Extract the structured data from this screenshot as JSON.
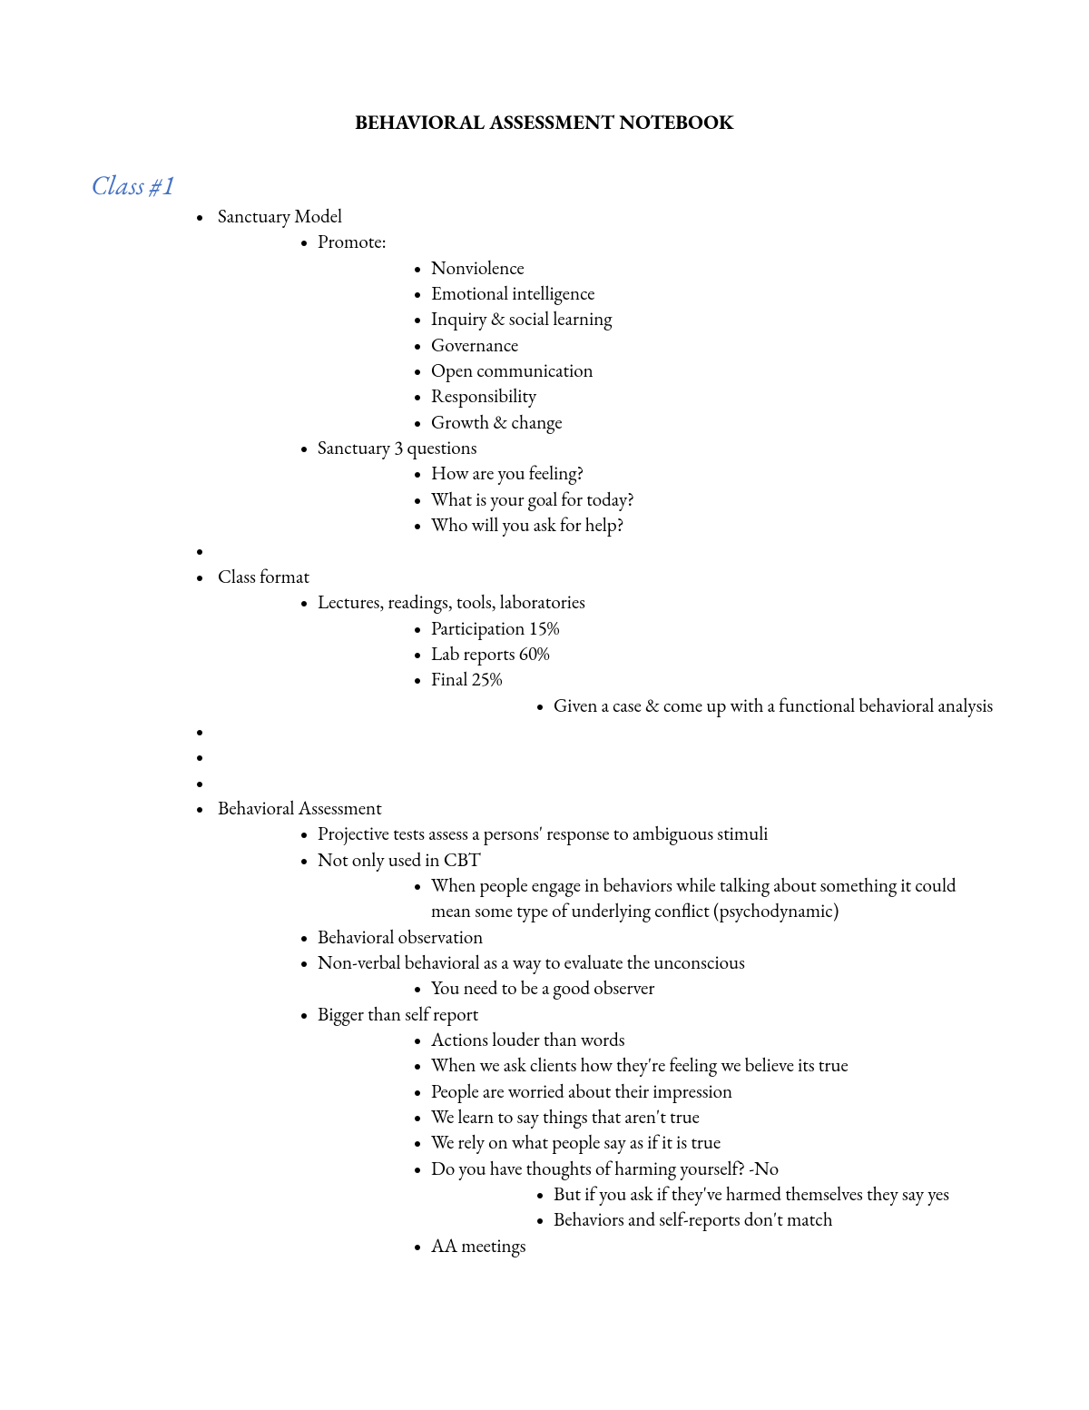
{
  "document": {
    "title": "BEHAVIORAL ASSESSMENT NOTEBOOK",
    "class_heading": "Class #1",
    "colors": {
      "heading_color": "#4472c4",
      "text_color": "#000000",
      "background_color": "#ffffff"
    },
    "typography": {
      "title_fontsize": 22,
      "heading_fontsize": 30,
      "body_fontsize": 21,
      "font_family": "Garamond"
    },
    "outline": [
      {
        "text": "Sanctuary Model",
        "children": [
          {
            "text": "Promote:",
            "children": [
              {
                "text": "Nonviolence"
              },
              {
                "text": "Emotional intelligence"
              },
              {
                "text": "Inquiry & social learning"
              },
              {
                "text": "Governance"
              },
              {
                "text": "Open communication"
              },
              {
                "text": "Responsibility"
              },
              {
                "text": "Growth & change"
              }
            ]
          },
          {
            "text": "Sanctuary 3 questions",
            "children": [
              {
                "text": "How are you feeling?"
              },
              {
                "text": "What is your goal for today?"
              },
              {
                "text": "Who will you ask for help?"
              }
            ]
          }
        ]
      },
      {
        "text": ""
      },
      {
        "text": "Class format",
        "children": [
          {
            "text": "Lectures, readings, tools, laboratories",
            "children": [
              {
                "text": "Participation 15%"
              },
              {
                "text": "Lab reports 60%"
              },
              {
                "text": "Final 25%",
                "children": [
                  {
                    "text": "Given a case & come up with a functional behavioral analysis"
                  }
                ]
              }
            ]
          }
        ]
      },
      {
        "text": ""
      },
      {
        "text": ""
      },
      {
        "text": ""
      },
      {
        "text": "Behavioral Assessment",
        "children": [
          {
            "text": "Projective tests assess a persons' response to ambiguous stimuli"
          },
          {
            "text": "Not only used in CBT",
            "children": [
              {
                "text": "When people engage in behaviors while talking about something it could mean some type of underlying conflict (psychodynamic)"
              }
            ]
          },
          {
            "text": "Behavioral observation"
          },
          {
            "text": "Non-verbal behavioral as a way to evaluate the unconscious",
            "children": [
              {
                "text": "You need to be a good observer"
              }
            ]
          },
          {
            "text": "Bigger than self report",
            "children": [
              {
                "text": "Actions louder than words"
              },
              {
                "text": "When we ask clients how they're feeling we believe its true"
              },
              {
                "text": "People are worried about their impression"
              },
              {
                "text": "We learn to say things that aren't true"
              },
              {
                "text": "We rely on what people say as if it is true"
              },
              {
                "text": "Do you have thoughts of harming yourself? -No",
                "children": [
                  {
                    "text": "But if you ask if they've harmed themselves they say yes"
                  },
                  {
                    "text": "Behaviors and self-reports don't match"
                  }
                ]
              },
              {
                "text": "AA meetings"
              }
            ]
          }
        ]
      }
    ]
  }
}
